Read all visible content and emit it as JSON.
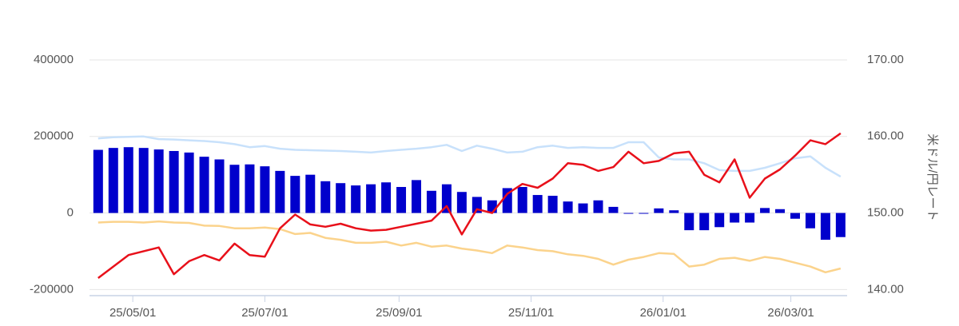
{
  "chart_data": {
    "type": "combo",
    "x": [
      "25/04/15",
      "25/04/22",
      "25/04/29",
      "25/05/06",
      "25/05/13",
      "25/05/20",
      "25/05/27",
      "25/06/03",
      "25/06/10",
      "25/06/17",
      "25/06/24",
      "25/07/01",
      "25/07/08",
      "25/07/15",
      "25/07/22",
      "25/07/29",
      "25/08/05",
      "25/08/12",
      "25/08/19",
      "25/08/26",
      "25/09/02",
      "25/09/09",
      "25/09/16",
      "25/09/23",
      "25/09/30",
      "25/10/07",
      "25/10/14",
      "25/10/21",
      "25/10/28",
      "25/11/04",
      "25/11/11",
      "25/11/18",
      "25/11/25",
      "25/12/02",
      "25/12/09",
      "25/12/16",
      "25/12/23",
      "25/12/30",
      "26/01/06",
      "26/01/13",
      "26/01/20",
      "26/01/27",
      "26/02/03",
      "26/02/10",
      "26/02/17",
      "26/02/24",
      "26/03/03",
      "26/03/10",
      "26/03/17",
      "26/03/24"
    ],
    "xlim": [
      "25/04/11",
      "26/03/27"
    ],
    "xticks": [
      "25/05/01",
      "25/07/01",
      "25/09/01",
      "25/11/01",
      "26/01/01",
      "26/03/01"
    ],
    "ylim": [
      -216000,
      400000
    ],
    "yticks": [
      -200000,
      0,
      200000,
      400000
    ],
    "y2lim": [
      139.2,
      170
    ],
    "y2ticks": [
      {
        "value": 140,
        "label": "140.00"
      },
      {
        "value": 150,
        "label": "150.00"
      },
      {
        "value": 160,
        "label": "160.00"
      },
      {
        "value": 170,
        "label": "170.00"
      }
    ],
    "y2label": "米ドル/円レート",
    "grid": true,
    "series": [
      {
        "type": "bar",
        "color": "#0000cc",
        "values": [
          165000,
          170000,
          172000,
          170000,
          166000,
          162000,
          158000,
          147000,
          140000,
          126000,
          127000,
          122000,
          110000,
          97000,
          100000,
          83000,
          78000,
          72000,
          75000,
          80000,
          68000,
          86000,
          58000,
          75000,
          55000,
          42000,
          33000,
          65000,
          68000,
          47000,
          45000,
          30000,
          25000,
          33000,
          16000,
          -2000,
          -2000,
          12000,
          7000,
          -45000,
          -45000,
          -37000,
          -25000,
          -25000,
          13000,
          10000,
          -15000,
          -40000,
          -70000,
          -63000
        ]
      },
      {
        "type": "line",
        "color": "#c8e1fb",
        "values": [
          195000,
          198000,
          199000,
          200000,
          193000,
          192000,
          190000,
          188000,
          185000,
          180000,
          172000,
          175000,
          168000,
          165000,
          164000,
          163000,
          162000,
          160000,
          158000,
          162000,
          165000,
          168000,
          172000,
          178000,
          162000,
          176000,
          168000,
          158000,
          160000,
          172000,
          176000,
          170000,
          172000,
          170000,
          170000,
          185000,
          185000,
          145000,
          140000,
          140000,
          130000,
          112000,
          110000,
          110000,
          118000,
          130000,
          143000,
          148000,
          118000,
          95000
        ]
      },
      {
        "type": "line",
        "color": "#fbd38c",
        "values": [
          -25000,
          -23000,
          -23000,
          -25000,
          -22000,
          -25000,
          -26000,
          -33000,
          -34000,
          -40000,
          -40000,
          -38000,
          -42000,
          -55000,
          -52000,
          -65000,
          -70000,
          -78000,
          -78000,
          -75000,
          -85000,
          -78000,
          -88000,
          -85000,
          -93000,
          -98000,
          -105000,
          -85000,
          -90000,
          -97000,
          -100000,
          -108000,
          -112000,
          -120000,
          -135000,
          -122000,
          -115000,
          -105000,
          -107000,
          -140000,
          -135000,
          -120000,
          -117000,
          -125000,
          -115000,
          -120000,
          -130000,
          -140000,
          -155000,
          -145000
        ]
      },
      {
        "type": "line",
        "axis": "y2",
        "color": "#e8101a",
        "values": [
          141.5,
          143,
          144.5,
          145,
          145.5,
          142,
          143.7,
          144.5,
          143.8,
          146,
          144.5,
          144.3,
          148,
          149.8,
          148.5,
          148.2,
          148.6,
          148,
          147.7,
          147.8,
          148.2,
          148.6,
          149,
          150.9,
          147.2,
          150.5,
          150,
          152.5,
          153.8,
          153.3,
          154.5,
          156.5,
          156.3,
          155.5,
          156,
          158,
          156.5,
          156.8,
          157.8,
          158,
          155,
          154,
          157,
          152,
          154.5,
          155.7,
          157.5,
          159.5,
          159,
          160.4
        ]
      }
    ]
  }
}
